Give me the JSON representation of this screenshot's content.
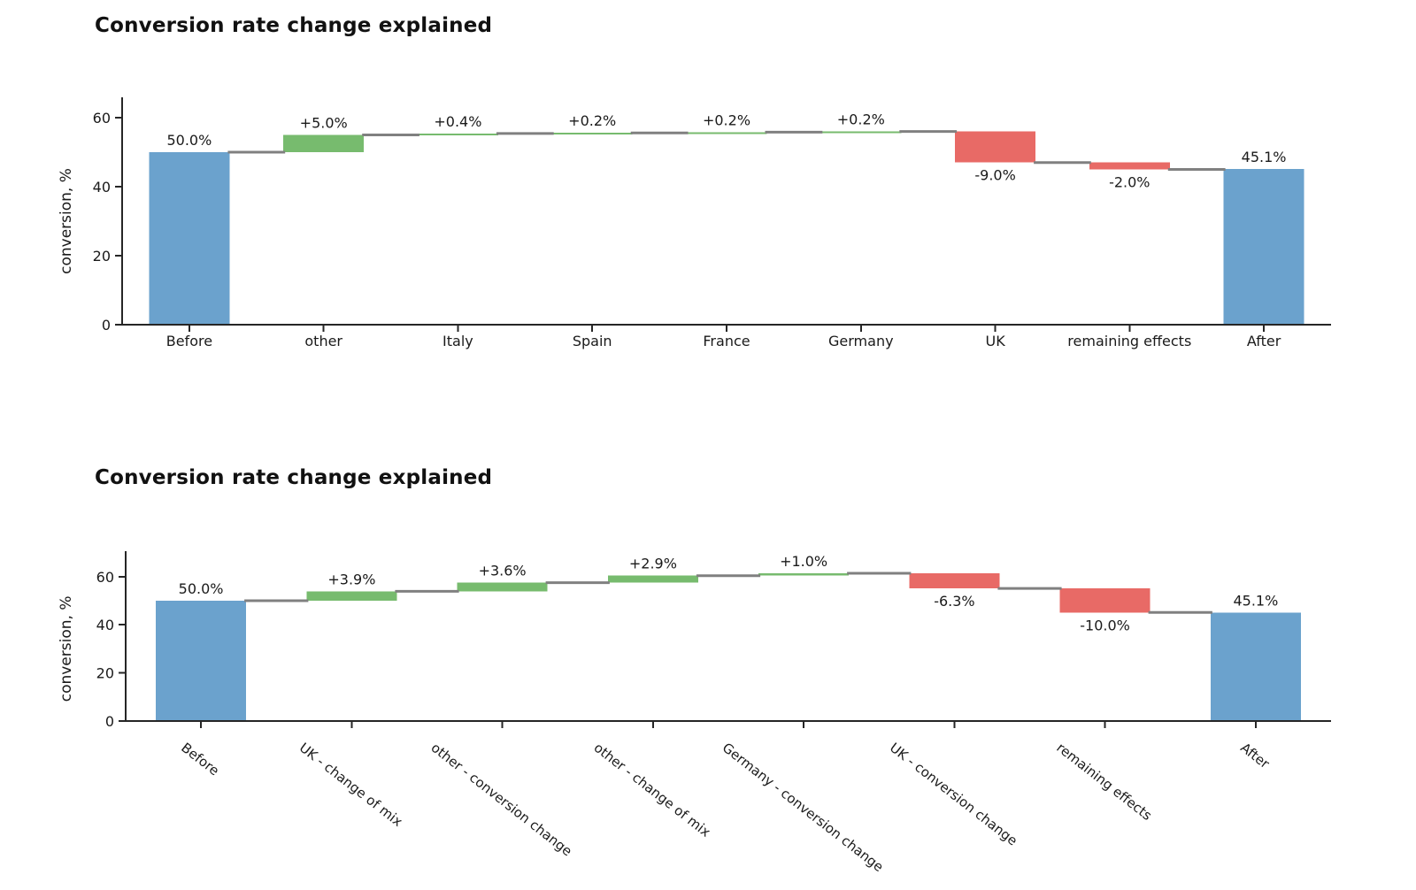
{
  "colors": {
    "total_bar": "#6BA2CD",
    "increase_bar": "#77BB6E",
    "decrease_bar": "#E86A66",
    "connector": "#808080",
    "axis": "#262626",
    "text": "#1A1A1A"
  },
  "chart_data": [
    {
      "type": "waterfall",
      "title": "Conversion rate change explained",
      "ylabel": "conversion, %",
      "yticks": [
        0,
        20,
        40,
        60
      ],
      "ylim": [
        0,
        66
      ],
      "grid": false,
      "legend": "none",
      "x_tick_rotation": 0,
      "categories": [
        "Before",
        "other",
        "Italy",
        "Spain",
        "France",
        "Germany",
        "UK",
        "remaining effects",
        "After"
      ],
      "steps": [
        {
          "category": "Before",
          "kind": "total",
          "value": 50.0,
          "label": "50.0%"
        },
        {
          "category": "other",
          "kind": "relative",
          "value": 5.0,
          "label": "+5.0%"
        },
        {
          "category": "Italy",
          "kind": "relative",
          "value": 0.4,
          "label": "+0.4%"
        },
        {
          "category": "Spain",
          "kind": "relative",
          "value": 0.2,
          "label": "+0.2%"
        },
        {
          "category": "France",
          "kind": "relative",
          "value": 0.2,
          "label": "+0.2%"
        },
        {
          "category": "Germany",
          "kind": "relative",
          "value": 0.2,
          "label": "+0.2%"
        },
        {
          "category": "UK",
          "kind": "relative",
          "value": -9.0,
          "label": "-9.0%"
        },
        {
          "category": "remaining effects",
          "kind": "relative",
          "value": -2.0,
          "label": "-2.0%"
        },
        {
          "category": "After",
          "kind": "total",
          "value": 45.1,
          "label": "45.1%"
        }
      ]
    },
    {
      "type": "waterfall",
      "title": "Conversion rate change explained",
      "ylabel": "conversion, %",
      "yticks": [
        0,
        20,
        40,
        60
      ],
      "ylim": [
        0,
        71
      ],
      "grid": false,
      "legend": "none",
      "x_tick_rotation": -38,
      "categories": [
        "Before",
        "UK - change of mix",
        "other - conversion change",
        "other - change of mix",
        "Germany - conversion change",
        "UK - conversion change",
        "remaining effects",
        "After"
      ],
      "steps": [
        {
          "category": "Before",
          "kind": "total",
          "value": 50.0,
          "label": "50.0%"
        },
        {
          "category": "UK - change of mix",
          "kind": "relative",
          "value": 3.9,
          "label": "+3.9%"
        },
        {
          "category": "other - conversion change",
          "kind": "relative",
          "value": 3.6,
          "label": "+3.6%"
        },
        {
          "category": "other - change of mix",
          "kind": "relative",
          "value": 2.9,
          "label": "+2.9%"
        },
        {
          "category": "Germany - conversion change",
          "kind": "relative",
          "value": 1.0,
          "label": "+1.0%"
        },
        {
          "category": "UK - conversion change",
          "kind": "relative",
          "value": -6.3,
          "label": "-6.3%"
        },
        {
          "category": "remaining effects",
          "kind": "relative",
          "value": -10.0,
          "label": "-10.0%"
        },
        {
          "category": "After",
          "kind": "total",
          "value": 45.1,
          "label": "45.1%"
        }
      ]
    }
  ]
}
